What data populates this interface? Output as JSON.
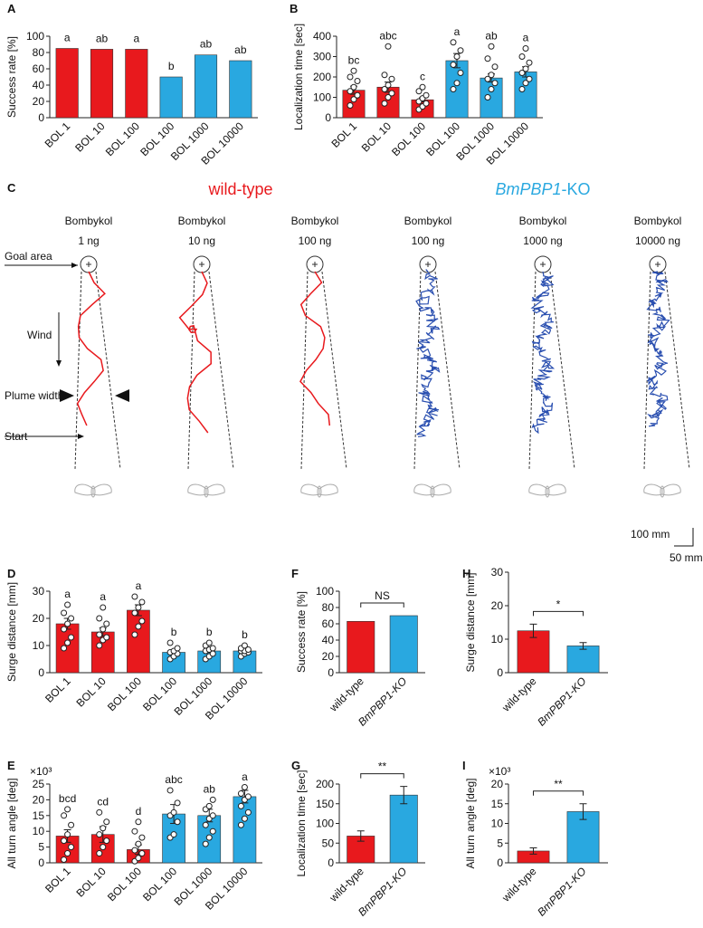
{
  "chart_data": [
    {
      "type": "bar",
      "panel": "A",
      "ylabel": "Success rate [%]",
      "categories": [
        "BOL 1",
        "BOL 10",
        "BOL 100",
        "BOL 100",
        "BOL 1000",
        "BOL 10000"
      ],
      "values": [
        85,
        84,
        84,
        50,
        77,
        70
      ],
      "colors": [
        "#e8191d",
        "#e8191d",
        "#e8191d",
        "#29a8e0",
        "#29a8e0",
        "#29a8e0"
      ],
      "letters": [
        "a",
        "ab",
        "a",
        "b",
        "ab",
        "ab"
      ],
      "ylim": [
        0,
        100
      ],
      "yticks": [
        0,
        20,
        40,
        60,
        80,
        100
      ]
    },
    {
      "type": "bar",
      "panel": "B",
      "ylabel": "Localization time [sec]",
      "categories": [
        "BOL 1",
        "BOL 10",
        "BOL 100",
        "BOL 100",
        "BOL 1000",
        "BOL 10000"
      ],
      "values": [
        135,
        150,
        88,
        280,
        195,
        225
      ],
      "errors": [
        20,
        25,
        10,
        35,
        20,
        25
      ],
      "points": [
        [
          60,
          90,
          110,
          130,
          150,
          180,
          200,
          230
        ],
        [
          70,
          100,
          120,
          140,
          160,
          190,
          210,
          350
        ],
        [
          40,
          55,
          70,
          80,
          95,
          110,
          130,
          150
        ],
        [
          140,
          170,
          220,
          260,
          300,
          330,
          370
        ],
        [
          100,
          140,
          170,
          190,
          210,
          250,
          290,
          350
        ],
        [
          140,
          170,
          190,
          220,
          240,
          270,
          300,
          340
        ]
      ],
      "colors": [
        "#e8191d",
        "#e8191d",
        "#e8191d",
        "#29a8e0",
        "#29a8e0",
        "#29a8e0"
      ],
      "letters": [
        "bc",
        "abc",
        "c",
        "a",
        "ab",
        "a"
      ],
      "ylim": [
        0,
        400
      ],
      "yticks": [
        0,
        100,
        200,
        300,
        400
      ]
    },
    {
      "type": "bar",
      "panel": "D",
      "ylabel": "Surge distance [mm]",
      "categories": [
        "BOL 1",
        "BOL 10",
        "BOL 100",
        "BOL 100",
        "BOL 1000",
        "BOL 10000"
      ],
      "values": [
        18,
        15,
        23,
        7.5,
        8,
        8
      ],
      "errors": [
        2,
        1.5,
        2,
        0.8,
        0.6,
        0.5
      ],
      "points": [
        [
          9,
          11,
          13,
          16,
          18,
          20,
          22,
          25
        ],
        [
          10,
          12,
          13,
          14,
          16,
          18,
          20,
          24
        ],
        [
          14,
          17,
          19,
          22,
          24,
          26,
          28
        ],
        [
          5,
          6,
          7,
          7.5,
          8,
          9,
          11
        ],
        [
          5,
          6,
          7,
          8,
          8.5,
          9,
          10,
          11
        ],
        [
          6,
          7,
          7.5,
          8,
          8,
          8.5,
          9,
          10
        ]
      ],
      "colors": [
        "#e8191d",
        "#e8191d",
        "#e8191d",
        "#29a8e0",
        "#29a8e0",
        "#29a8e0"
      ],
      "letters": [
        "a",
        "a",
        "a",
        "b",
        "b",
        "b"
      ],
      "ylim": [
        0,
        30
      ],
      "yticks": [
        0,
        10,
        20,
        30
      ]
    },
    {
      "type": "bar",
      "panel": "E",
      "ylabel": "All turn angle [deg]",
      "y_scale_label": "×10³",
      "categories": [
        "BOL 1",
        "BOL 10",
        "BOL 100",
        "BOL 100",
        "BOL 1000",
        "BOL 10000"
      ],
      "values": [
        8.5,
        9,
        4.2,
        15.5,
        15,
        21
      ],
      "errors": [
        2,
        2.5,
        1.5,
        3,
        2,
        2
      ],
      "points": [
        [
          1,
          3,
          5,
          7,
          9,
          12,
          15,
          17
        ],
        [
          3,
          5,
          7,
          9,
          11,
          13,
          16
        ],
        [
          0.5,
          1.5,
          3,
          4,
          6,
          8,
          10,
          13
        ],
        [
          8,
          9,
          13,
          15,
          16,
          19,
          23
        ],
        [
          6,
          8,
          10,
          12,
          14,
          15,
          17,
          18,
          20
        ],
        [
          12,
          14,
          16,
          18,
          20,
          21,
          22,
          24
        ]
      ],
      "colors": [
        "#e8191d",
        "#e8191d",
        "#e8191d",
        "#29a8e0",
        "#29a8e0",
        "#29a8e0"
      ],
      "letters": [
        "bcd",
        "cd",
        "d",
        "abc",
        "ab",
        "a"
      ],
      "ylim": [
        0,
        25
      ],
      "yticks": [
        0,
        5,
        10,
        15,
        20,
        25
      ]
    },
    {
      "type": "bar",
      "panel": "F",
      "ylabel": "Success rate [%]",
      "categories": [
        "wild-type",
        "BmPBP1-KO"
      ],
      "values": [
        63,
        70
      ],
      "colors": [
        "#e8191d",
        "#29a8e0"
      ],
      "significance": "NS",
      "ylim": [
        0,
        100
      ],
      "yticks": [
        0,
        20,
        40,
        60,
        80,
        100
      ]
    },
    {
      "type": "bar",
      "panel": "G",
      "ylabel": "Localization time [sec]",
      "categories": [
        "wild-type",
        "BmPBP1-KO"
      ],
      "values": [
        68,
        172
      ],
      "errors": [
        13,
        22
      ],
      "colors": [
        "#e8191d",
        "#29a8e0"
      ],
      "significance": "**",
      "ylim": [
        0,
        200
      ],
      "yticks": [
        0,
        50,
        100,
        150,
        200
      ]
    },
    {
      "type": "bar",
      "panel": "H",
      "ylabel": "Surge distance [mm]",
      "categories": [
        "wild-type",
        "BmPBP1-KO"
      ],
      "values": [
        12.5,
        8
      ],
      "errors": [
        2,
        1
      ],
      "colors": [
        "#e8191d",
        "#29a8e0"
      ],
      "significance": "*",
      "ylim": [
        0,
        30
      ],
      "yticks": [
        0,
        10,
        20,
        30
      ]
    },
    {
      "type": "bar",
      "panel": "I",
      "ylabel": "All turn angle [deg]",
      "y_scale_label": "×10³",
      "categories": [
        "wild-type",
        "BmPBP1-KO"
      ],
      "values": [
        3,
        13
      ],
      "errors": [
        0.8,
        2
      ],
      "colors": [
        "#e8191d",
        "#29a8e0"
      ],
      "significance": "**",
      "ylim": [
        0,
        20
      ],
      "yticks": [
        0,
        5,
        10,
        15,
        20
      ]
    }
  ],
  "panel_c": {
    "panel": "C",
    "wild_type": "wild-type",
    "knockout_gene": "BmPBP1",
    "knockout_suffix": "-KO",
    "columns": [
      {
        "odorant": "Bombykol",
        "dose": "1 ng"
      },
      {
        "odorant": "Bombykol",
        "dose": "10 ng"
      },
      {
        "odorant": "Bombykol",
        "dose": "100 ng"
      },
      {
        "odorant": "Bombykol",
        "dose": "100 ng"
      },
      {
        "odorant": "Bombykol",
        "dose": "1000 ng"
      },
      {
        "odorant": "Bombykol",
        "dose": "10000 ng"
      }
    ],
    "labels": {
      "goal": "Goal area",
      "wind": "Wind",
      "plume": "Plume width",
      "start": "Start"
    },
    "scale": {
      "length": "100 mm",
      "width": "50 mm"
    }
  }
}
